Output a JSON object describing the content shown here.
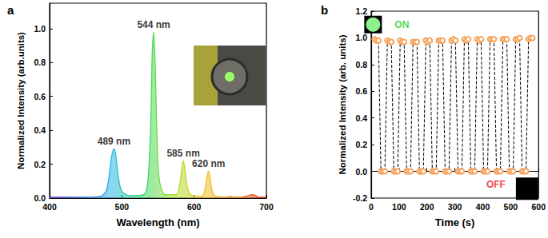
{
  "chart_data": [
    {
      "type": "line",
      "title": "a",
      "x_label": "Wavelength (nm)",
      "y_label": "Normalized Intensity (arb.units)",
      "x": [
        400,
        450,
        470,
        478,
        482,
        485,
        487,
        489,
        491,
        493,
        496,
        500,
        510,
        530,
        536,
        540,
        542,
        544,
        546,
        548,
        550,
        553,
        560,
        575,
        580,
        583,
        585,
        587,
        590,
        595,
        610,
        615,
        618,
        620,
        622,
        625,
        630,
        645,
        650,
        655,
        665,
        675,
        680,
        685,
        690,
        700
      ],
      "values": [
        0.005,
        0.005,
        0.01,
        0.04,
        0.12,
        0.22,
        0.27,
        0.29,
        0.27,
        0.2,
        0.1,
        0.04,
        0.015,
        0.02,
        0.1,
        0.45,
        0.85,
        0.98,
        0.8,
        0.45,
        0.2,
        0.08,
        0.02,
        0.02,
        0.08,
        0.18,
        0.22,
        0.18,
        0.08,
        0.02,
        0.01,
        0.05,
        0.13,
        0.16,
        0.12,
        0.04,
        0.01,
        0.005,
        0.01,
        0.005,
        0.005,
        0.015,
        0.02,
        0.015,
        0.005,
        0.005
      ],
      "xlim": [
        400,
        700
      ],
      "xticks": [
        400,
        500,
        600,
        700
      ],
      "ylim": [
        0,
        1.15
      ],
      "yticks": [
        {
          "value": 0,
          "label": "0.0"
        },
        0.2,
        0.4,
        0.6,
        0.8,
        {
          "value": 1,
          "label": "1.0"
        }
      ],
      "grid": false,
      "marker": "none",
      "line_style": "solid",
      "annotations": [
        {
          "text": "489 nm",
          "x": 489,
          "y": 0.29
        },
        {
          "text": "544 nm",
          "x": 544,
          "y": 0.98
        },
        {
          "text": "585 nm",
          "x": 585,
          "y": 0.22
        },
        {
          "text": "620 nm",
          "x": 620,
          "y": 0.16
        }
      ]
    },
    {
      "type": "line",
      "title": "b",
      "x_label": "Time (s)",
      "y_label": "Normalized Intensity (arb. units)",
      "x": [
        12,
        19,
        26,
        35,
        42,
        49,
        58,
        65,
        72,
        81,
        88,
        95,
        104,
        111,
        118,
        127,
        134,
        141,
        150,
        157,
        164,
        173,
        180,
        187,
        196,
        203,
        210,
        219,
        226,
        233,
        242,
        249,
        256,
        265,
        272,
        279,
        288,
        295,
        302,
        311,
        318,
        325,
        334,
        341,
        348,
        357,
        364,
        371,
        380,
        387,
        394,
        403,
        410,
        417,
        426,
        433,
        440,
        449,
        456,
        463,
        472,
        479,
        486,
        495,
        502,
        509,
        518,
        525,
        532,
        541,
        548,
        555,
        564,
        571,
        578
      ],
      "values": [
        0.99,
        0.98,
        0.98,
        0.0,
        0.0,
        0.0,
        0.98,
        0.97,
        0.97,
        0.0,
        0.0,
        0.0,
        0.98,
        0.97,
        0.97,
        0.0,
        0.0,
        0.0,
        0.97,
        0.97,
        0.97,
        0.0,
        0.0,
        0.0,
        0.98,
        0.97,
        0.98,
        0.0,
        0.0,
        0.0,
        0.98,
        0.98,
        0.98,
        0.0,
        0.0,
        0.0,
        0.98,
        0.99,
        0.98,
        0.0,
        0.0,
        0.0,
        0.99,
        0.98,
        0.99,
        0.0,
        0.0,
        0.0,
        0.99,
        0.98,
        0.99,
        0.0,
        0.0,
        0.0,
        0.99,
        0.99,
        0.99,
        0.0,
        0.0,
        0.0,
        0.99,
        0.99,
        0.99,
        0.0,
        0.0,
        0.0,
        0.99,
        0.99,
        1.0,
        0.0,
        0.0,
        0.0,
        0.99,
        1.0,
        1.0
      ],
      "color": "#f5a35c",
      "xlim": [
        0,
        600
      ],
      "xticks": [
        0,
        100,
        200,
        300,
        400,
        500,
        600
      ],
      "ylim": [
        -0.2,
        1.2
      ],
      "yticks": [
        -0.2,
        {
          "value": 0,
          "label": "0.0"
        },
        0.2,
        0.4,
        0.6,
        0.8,
        {
          "value": 1,
          "label": "1.0"
        },
        1.2
      ],
      "grid": false,
      "marker": "circle-open",
      "line_style": "dashed",
      "annotations": [
        {
          "text": "ON",
          "x": 110,
          "y": 1.1,
          "color": "#22cc22"
        },
        {
          "text": "OFF",
          "x": 447,
          "y": -0.1,
          "color": "#e8141e"
        }
      ]
    }
  ]
}
